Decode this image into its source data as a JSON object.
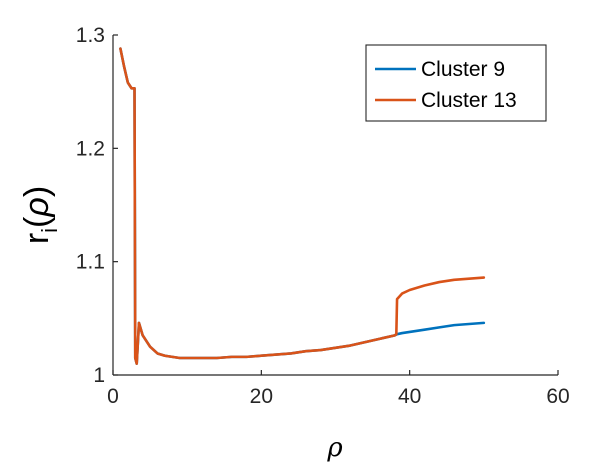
{
  "chart_data": {
    "type": "line",
    "title": "",
    "xlabel": "ρ",
    "ylabel": {
      "main": "r",
      "subscript": "i",
      "open": "(",
      "arg": "ρ",
      "close": ")"
    },
    "xlim": [
      0,
      60
    ],
    "ylim": [
      1,
      1.3
    ],
    "xticks": [
      0,
      20,
      40,
      60
    ],
    "xtick_labels": [
      "0",
      "20",
      "40",
      "60"
    ],
    "yticks": [
      1,
      1.1,
      1.2,
      1.3
    ],
    "ytick_labels": [
      "1",
      "1.1",
      "1.2",
      "1.3"
    ],
    "grid": false,
    "legend_position": "top-right",
    "series": [
      {
        "name": "Cluster 9",
        "color": "#0072BD",
        "x": [
          1,
          1.5,
          2,
          2.5,
          2.9,
          3.0,
          3.2,
          3.5,
          4,
          5,
          6,
          7,
          8,
          9,
          10,
          12,
          14,
          16,
          18,
          20,
          22,
          24,
          26,
          28,
          30,
          32,
          34,
          36,
          38,
          38.3,
          39,
          40,
          42,
          44,
          46,
          48,
          50
        ],
        "y": [
          1.288,
          1.272,
          1.258,
          1.253,
          1.253,
          1.015,
          1.01,
          1.046,
          1.035,
          1.025,
          1.019,
          1.017,
          1.016,
          1.015,
          1.015,
          1.015,
          1.015,
          1.016,
          1.016,
          1.017,
          1.018,
          1.019,
          1.021,
          1.022,
          1.024,
          1.026,
          1.029,
          1.032,
          1.035,
          1.036,
          1.037,
          1.038,
          1.04,
          1.042,
          1.044,
          1.045,
          1.046
        ]
      },
      {
        "name": "Cluster 13",
        "color": "#D95319",
        "x": [
          1,
          1.5,
          2,
          2.5,
          2.9,
          3.0,
          3.2,
          3.5,
          4,
          5,
          6,
          7,
          8,
          9,
          10,
          12,
          14,
          16,
          18,
          20,
          22,
          24,
          26,
          28,
          30,
          32,
          34,
          36,
          38,
          38.2,
          38.3,
          39,
          40,
          42,
          44,
          46,
          48,
          50
        ],
        "y": [
          1.288,
          1.272,
          1.258,
          1.253,
          1.253,
          1.015,
          1.01,
          1.046,
          1.035,
          1.025,
          1.019,
          1.017,
          1.016,
          1.015,
          1.015,
          1.015,
          1.015,
          1.016,
          1.016,
          1.017,
          1.018,
          1.019,
          1.021,
          1.022,
          1.024,
          1.026,
          1.029,
          1.032,
          1.035,
          1.036,
          1.067,
          1.072,
          1.075,
          1.079,
          1.082,
          1.084,
          1.085,
          1.086
        ]
      }
    ]
  }
}
